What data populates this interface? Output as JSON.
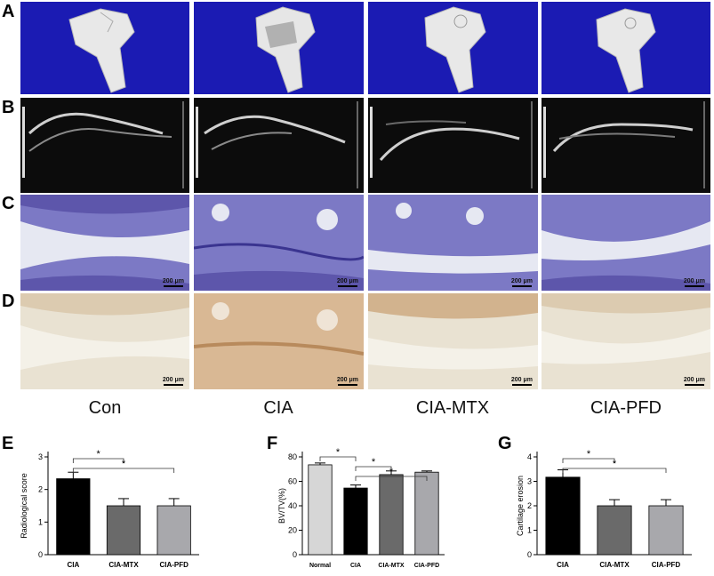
{
  "panel_labels": [
    "A",
    "B",
    "C",
    "D",
    "E",
    "F",
    "G"
  ],
  "groups": [
    "Con",
    "CIA",
    "CIA-MTX",
    "CIA-PFD"
  ],
  "scale_bar": "200 μm",
  "chart_data": [
    {
      "type": "bar",
      "ylabel": "Radiological score",
      "categories": [
        "CIA",
        "CIA-MTX",
        "CIA-PFD"
      ],
      "values": [
        2.33,
        1.5,
        1.5
      ],
      "errors": [
        0.2,
        0.22,
        0.22
      ],
      "colors": [
        "#000000",
        "#6a6a6a",
        "#a8a8ac"
      ],
      "ylim": [
        0,
        3
      ],
      "yticks": [
        0,
        1,
        2,
        3
      ],
      "significance": [
        {
          "from": 0,
          "to": 1,
          "label": "*"
        },
        {
          "from": 0,
          "to": 2,
          "label": "*"
        }
      ]
    },
    {
      "type": "bar",
      "ylabel": "BV/TV(%)",
      "categories": [
        "Normal",
        "CIA",
        "CIA-MTX",
        "CIA-PFD"
      ],
      "values": [
        73.5,
        54.5,
        65.5,
        67.5
      ],
      "errors": [
        1.5,
        2.5,
        3,
        1
      ],
      "colors": [
        "#d6d6d6",
        "#000000",
        "#6a6a6a",
        "#a8a8ac"
      ],
      "ylim": [
        0,
        80
      ],
      "yticks": [
        0,
        20,
        40,
        60,
        80
      ],
      "significance": [
        {
          "from": 0,
          "to": 1,
          "label": "*"
        },
        {
          "from": 1,
          "to": 2,
          "label": "*"
        },
        {
          "from": 1,
          "to": 3,
          "label": "*"
        }
      ]
    },
    {
      "type": "bar",
      "ylabel": "Cartilage erosion",
      "categories": [
        "CIA",
        "CIA-MTX",
        "CIA-PFD"
      ],
      "values": [
        3.17,
        2.0,
        2.0
      ],
      "errors": [
        0.3,
        0.25,
        0.25
      ],
      "colors": [
        "#000000",
        "#6a6a6a",
        "#a8a8ac"
      ],
      "ylim": [
        0,
        4
      ],
      "yticks": [
        0,
        1,
        2,
        3,
        4
      ],
      "significance": [
        {
          "from": 0,
          "to": 1,
          "label": "*"
        },
        {
          "from": 0,
          "to": 2,
          "label": "*"
        }
      ]
    }
  ]
}
